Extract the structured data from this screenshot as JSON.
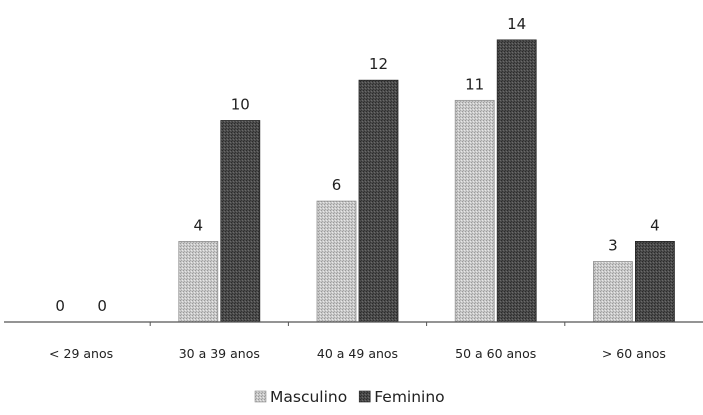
{
  "chart_data": {
    "type": "bar",
    "categories": [
      "< 29 anos",
      "30 a 39 anos",
      "40 a 49 anos",
      "50 a 60 anos",
      "> 60 anos"
    ],
    "series": [
      {
        "name": "Masculino",
        "values": [
          0,
          4,
          6,
          11,
          3
        ],
        "color": "#c4c4c4"
      },
      {
        "name": "Feminino",
        "values": [
          0,
          10,
          12,
          14,
          4
        ],
        "color": "#4a4a4a"
      }
    ],
    "ylim": [
      0,
      15
    ],
    "grid": false,
    "legend": "bottom-center"
  }
}
